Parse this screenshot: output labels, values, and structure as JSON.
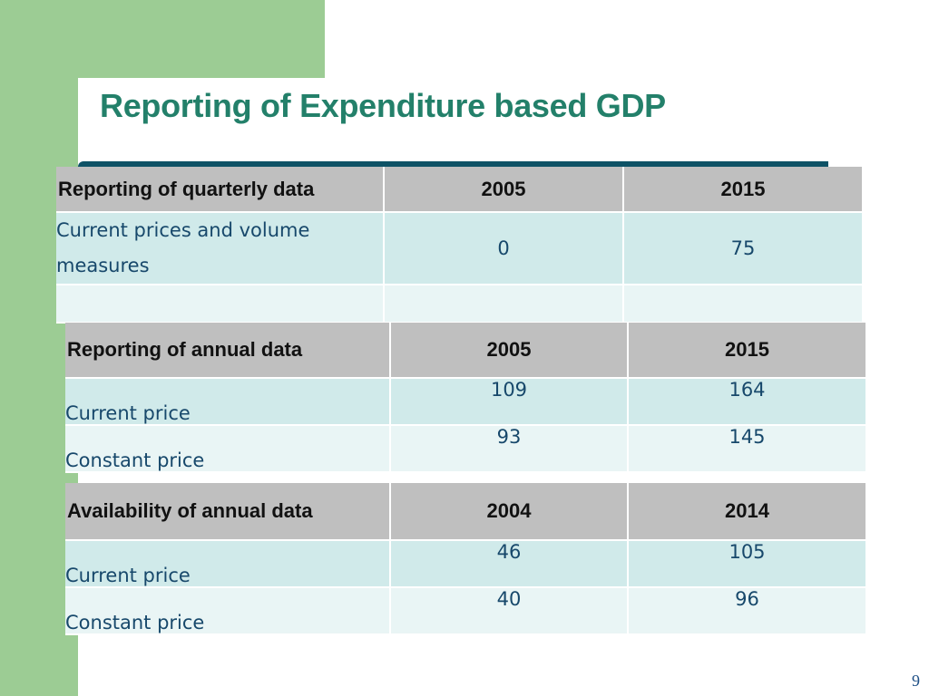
{
  "slide": {
    "title": "Reporting of Expenditure based GDP",
    "page_number": "9"
  },
  "quarterly": {
    "headers": [
      "Reporting of quarterly data",
      "2005",
      "2015"
    ],
    "rows": [
      {
        "label": "Current prices and volume measures",
        "v1": "0",
        "v2": "75"
      },
      {
        "label": "",
        "v1": "",
        "v2": ""
      }
    ]
  },
  "annual_reporting": {
    "headers": [
      "Reporting of annual data",
      "2005",
      "2015"
    ],
    "rows": [
      {
        "label": "Current price",
        "v1": "109",
        "v2": "164"
      },
      {
        "label": "Constant price",
        "v1": "93",
        "v2": "145"
      }
    ]
  },
  "annual_availability": {
    "headers": [
      "Availability of annual data",
      "2004",
      "2014"
    ],
    "rows": [
      {
        "label": "Current price",
        "v1": "46",
        "v2": "105"
      },
      {
        "label": "Constant price",
        "v1": "40",
        "v2": "96"
      }
    ]
  },
  "colors": {
    "accent_green": "#9ccc94",
    "title_teal": "#23806a",
    "rule_blue": "#0e5266",
    "header_gray": "#bfbfbf",
    "row_light": "#d0eaea",
    "row_lighter": "#e9f5f5",
    "text_blue": "#17486b"
  }
}
